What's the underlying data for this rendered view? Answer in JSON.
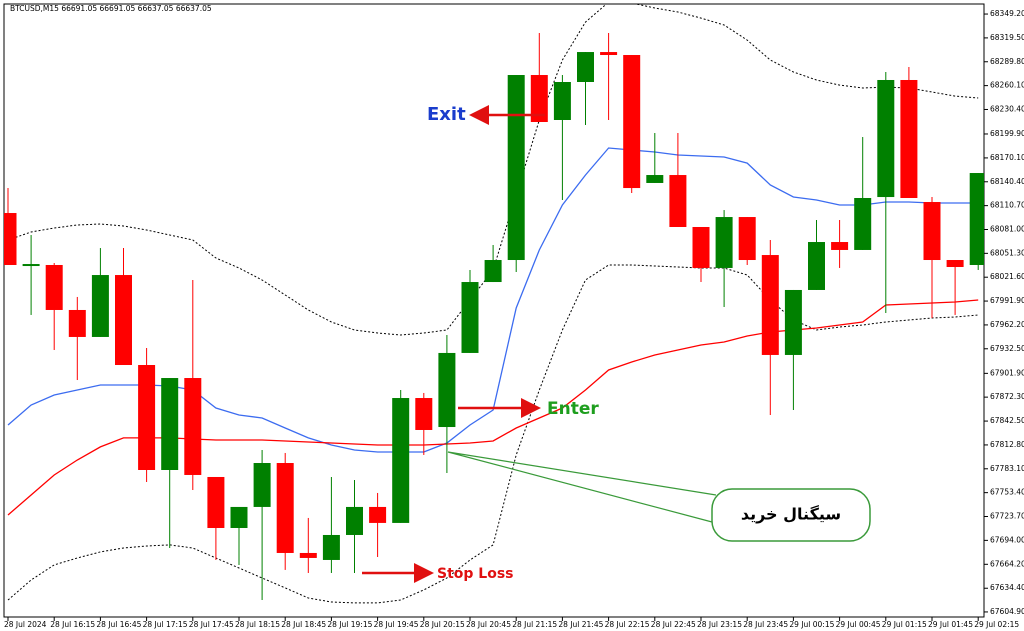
{
  "chart_data": {
    "type": "candlestick",
    "title": "BTCUSD,M15  66691.05 66691.05 66637.05 66637.05",
    "categories": [
      "28 Jul 2024",
      null,
      "28 Jul 16:15",
      null,
      "28 Jul 16:45",
      null,
      "28 Jul 17:15",
      null,
      "28 Jul 17:45",
      null,
      "28 Jul 18:15",
      null,
      "28 Jul 18:45",
      null,
      "28 Jul 19:15",
      null,
      "28 Jul 19:45",
      null,
      "28 Jul 20:15",
      null,
      "28 Jul 20:45",
      null,
      "28 Jul 21:15",
      null,
      "28 Jul 21:45",
      null,
      "28 Jul 22:15",
      null,
      "28 Jul 22:45",
      null,
      "28 Jul 23:15",
      null,
      "28 Jul 23:45",
      null,
      "29 Jul 00:15",
      null,
      "29 Jul 00:45",
      null,
      "29 Jul 01:15",
      null,
      "29 Jul 01:45",
      null,
      "29 Jul 02:15"
    ],
    "open": [
      68101.5,
      68036.8,
      68036.8,
      67980.8,
      67947.2,
      68024.3,
      67912.3,
      67781.6,
      67896.1,
      67772.9,
      67709.4,
      67735.6,
      67790.3,
      67678.3,
      67669.6,
      67700.7,
      67735.6,
      67715.7,
      67871.2,
      67835.1,
      67927.3,
      68015.6,
      68043.0,
      68273.3,
      68217.3,
      68264.6,
      68301.9,
      68298.2,
      68138.9,
      68148.8,
      68084.1,
      68033.1,
      68096.5,
      68049.2,
      67924.8,
      68005.7,
      68065.4,
      68055.5,
      68121.4,
      68267.1,
      68115.2,
      68043.0,
      68036.8
    ],
    "high": [
      68132.6,
      68074.1,
      68039.3,
      67997.0,
      68057.9,
      68057.9,
      67933.5,
      67896.1,
      68018.1,
      67772.9,
      67735.6,
      67806.5,
      67802.8,
      67721.9,
      67772.9,
      67769.2,
      67753.0,
      67881.2,
      67877.5,
      67949.7,
      68030.6,
      68061.7,
      68273.3,
      68325.6,
      68273.3,
      68301.9,
      68325.6,
      68298.2,
      68201.1,
      68201.1,
      68084.1,
      68105.2,
      68096.5,
      68067.9,
      68005.7,
      68092.8,
      68092.8,
      68196.1,
      68277.0,
      68283.2,
      68121.4,
      68043.0,
      68151.3
    ],
    "low": [
      68036.8,
      67974.6,
      67931.0,
      67893.6,
      67947.2,
      67912.3,
      67766.7,
      67684.5,
      67756.7,
      67669.6,
      67663.4,
      67619.8,
      67657.2,
      67653.4,
      67653.4,
      67653.4,
      67673.3,
      67715.7,
      67800.3,
      67777.9,
      67927.3,
      68015.6,
      68028.1,
      68214.8,
      68117.7,
      68211.0,
      68217.3,
      68126.4,
      68138.9,
      68084.1,
      68015.6,
      67984.5,
      68036.8,
      67850.1,
      67856.3,
      68005.7,
      68033.1,
      68055.5,
      67977.0,
      68120.2,
      67970.8,
      67974.6,
      68030.6
    ],
    "close": [
      68036.8,
      68038.0,
      67980.8,
      67947.2,
      68024.3,
      67912.3,
      67781.6,
      67896.1,
      67775.4,
      67709.4,
      67735.6,
      67790.3,
      67678.3,
      67672.1,
      67700.7,
      67735.6,
      67715.7,
      67871.2,
      67831.4,
      67927.3,
      68015.6,
      68043.0,
      68273.3,
      68214.8,
      68264.6,
      68301.9,
      68298.2,
      68132.6,
      68148.8,
      68084.1,
      68033.1,
      68096.5,
      68043.0,
      67924.8,
      68005.7,
      68065.4,
      68055.5,
      68120.2,
      68267.1,
      68120.2,
      68043.0,
      68034.3,
      68151.3
    ],
    "up_color": "#008000",
    "down_color": "#ff0000",
    "lines": [
      {
        "color": "#000000",
        "dashed": true,
        "values": [
          68067.9,
          68077.9,
          68082.8,
          68086.6,
          68087.8,
          68085.3,
          68080.4,
          68074.1,
          68067.9,
          68045.5,
          68033.1,
          68018.1,
          67999.4,
          67980.8,
          67965.8,
          67955.9,
          67952.1,
          67949.7,
          67952.1,
          67955.9,
          67993.2,
          68030.6,
          68123.9,
          68217.3,
          68292.0,
          68339.2,
          68364.1,
          68362.9,
          68356.7,
          68351.7,
          68344.2,
          68335.5,
          68316.8,
          68292.0,
          68277.0,
          68267.1,
          68260.8,
          68257.1,
          68258.3,
          68257.1,
          68252.1,
          68247.1,
          68244.7
        ]
      },
      {
        "color": "#000000",
        "dashed": true,
        "values": [
          67619.8,
          67644.7,
          67663.4,
          67672.1,
          67679.6,
          67684.5,
          67687.0,
          67688.3,
          67684.5,
          67672.1,
          67659.6,
          67647.2,
          67634.8,
          67622.3,
          67617.3,
          67616.1,
          67616.1,
          67619.8,
          67632.3,
          67647.2,
          67669.6,
          67688.3,
          67800.3,
          67881.2,
          67955.9,
          68018.1,
          68036.8,
          68036.8,
          68035.5,
          68034.3,
          68033.1,
          68033.1,
          68024.3,
          67993.2,
          67968.3,
          67955.9,
          67959.6,
          67962.1,
          67965.8,
          67968.3,
          67970.8,
          67972.1,
          67974.6
        ]
      },
      {
        "color": "#3c6cf0",
        "dashed": false,
        "values": [
          67837.6,
          67862.5,
          67875.0,
          67881.2,
          67887.4,
          67887.4,
          67887.4,
          67886.2,
          67881.2,
          67858.8,
          67850.1,
          67846.3,
          67833.9,
          67821.5,
          67812.7,
          67806.5,
          67804.0,
          67804.0,
          67804.0,
          67815.2,
          67837.6,
          67856.3,
          67983.3,
          68055.5,
          68111.5,
          68148.8,
          68182.4,
          68179.9,
          68177.4,
          68173.7,
          68172.5,
          68171.2,
          68163.7,
          68136.4,
          68121.4,
          68117.7,
          68111.5,
          68111.5,
          68115.2,
          68115.2,
          68114.0,
          68114.0,
          68114.0
        ]
      },
      {
        "color": "#ff0000",
        "dashed": false,
        "values": [
          67725.6,
          67750.5,
          67775.4,
          67794.1,
          67810.3,
          67821.5,
          67821.5,
          67821.5,
          67820.2,
          67819.0,
          67819.0,
          67819.0,
          67817.7,
          67816.5,
          67815.2,
          67814.0,
          67812.7,
          67812.7,
          67812.7,
          67814.0,
          67815.2,
          67817.7,
          67833.9,
          67846.3,
          67858.8,
          67881.2,
          67906.1,
          67916.1,
          67924.8,
          67931.0,
          67937.2,
          67940.9,
          67948.4,
          67953.4,
          67955.9,
          67958.4,
          67962.1,
          67965.8,
          67987.0,
          67988.2,
          67989.5,
          67990.7,
          67993.2
        ]
      }
    ],
    "ylim": [
      67598.6,
      68361.7
    ],
    "yticks": [
      {
        "value": 67604.9,
        "label": "67604.90"
      },
      {
        "value": 67634.4,
        "label": "67634.40"
      },
      {
        "value": 67664.2,
        "label": "67664.20"
      },
      {
        "value": 67694,
        "label": "67694.00"
      },
      {
        "value": 67723.7,
        "label": "67723.70"
      },
      {
        "value": 67753.4,
        "label": "67753.40"
      },
      {
        "value": 67783.1,
        "label": "67783.10"
      },
      {
        "value": 67812.8,
        "label": "67812.80"
      },
      {
        "value": 67842.5,
        "label": "67842.50"
      },
      {
        "value": 67872.3,
        "label": "67872.30"
      },
      {
        "value": 67901.9,
        "label": "67901.90"
      },
      {
        "value": 67932.5,
        "label": "67932.50"
      },
      {
        "value": 67962.2,
        "label": "67962.20"
      },
      {
        "value": 67991.9,
        "label": "67991.90"
      },
      {
        "value": 68021.6,
        "label": "68021.60"
      },
      {
        "value": 68051.3,
        "label": "68051.30"
      },
      {
        "value": 68081,
        "label": "68081.00"
      },
      {
        "value": 68110.7,
        "label": "68110.70"
      },
      {
        "value": 68140.4,
        "label": "68140.40"
      },
      {
        "value": 68170.1,
        "label": "68170.10"
      },
      {
        "value": 68199.9,
        "label": "68199.90"
      },
      {
        "value": 68230.4,
        "label": "68230.40"
      },
      {
        "value": 68260.1,
        "label": "68260.10"
      },
      {
        "value": 68289.8,
        "label": "68289.80"
      },
      {
        "value": 68319.5,
        "label": "68319.50"
      },
      {
        "value": 68349.2,
        "label": "68349.20"
      }
    ],
    "grid": false,
    "annotations": [
      "Exit",
      "Enter",
      "Stop Loss",
      "سیگنال خرید"
    ]
  }
}
